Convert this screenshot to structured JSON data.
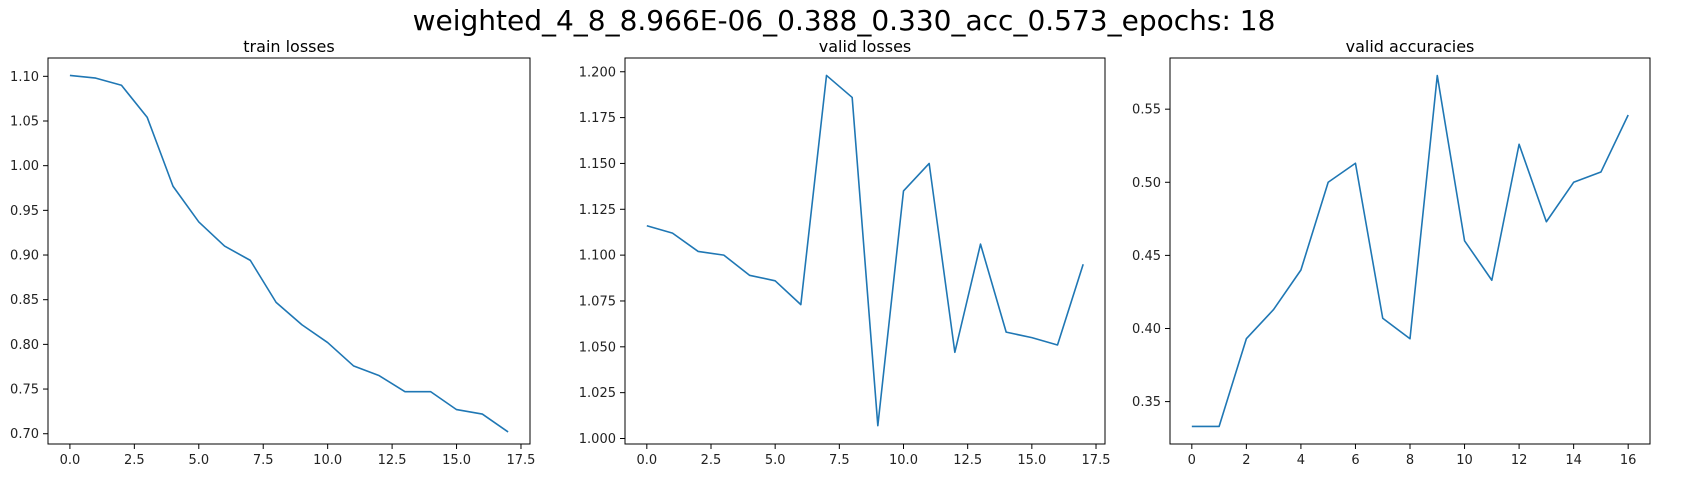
{
  "figure": {
    "suptitle": "weighted_4_8_8.966E-06_0.388_0.330_acc_0.573_epochs: 18"
  },
  "line_color": "#1f77b4",
  "chart_data": [
    {
      "type": "line",
      "title": "train losses",
      "xlabel": "",
      "ylabel": "",
      "x": [
        0,
        1,
        2,
        3,
        4,
        5,
        6,
        7,
        8,
        9,
        10,
        11,
        12,
        13,
        14,
        15,
        16,
        17
      ],
      "series": [
        {
          "values": [
            1.101,
            1.098,
            1.09,
            1.054,
            0.977,
            0.937,
            0.91,
            0.894,
            0.847,
            0.822,
            0.802,
            0.776,
            0.765,
            0.747,
            0.747,
            0.727,
            0.722,
            0.702
          ]
        }
      ],
      "xlim": [
        -0.85,
        17.85
      ],
      "ylim": [
        0.6885,
        1.1205
      ],
      "xticks": [
        0,
        2.5,
        5,
        7.5,
        10,
        12.5,
        15,
        17.5
      ],
      "xtick_labels": [
        "0.0",
        "2.5",
        "5.0",
        "7.5",
        "10.0",
        "12.5",
        "15.0",
        "17.5"
      ],
      "yticks": [
        0.7,
        0.75,
        0.8,
        0.85,
        0.9,
        0.95,
        1.0,
        1.05,
        1.1
      ],
      "ytick_labels": [
        "0.70",
        "0.75",
        "0.80",
        "0.85",
        "0.90",
        "0.95",
        "1.00",
        "1.05",
        "1.10"
      ],
      "grid": false
    },
    {
      "type": "line",
      "title": "valid losses",
      "xlabel": "",
      "ylabel": "",
      "x": [
        0,
        1,
        2,
        3,
        4,
        5,
        6,
        7,
        8,
        9,
        10,
        11,
        12,
        13,
        14,
        15,
        16,
        17
      ],
      "series": [
        {
          "values": [
            1.116,
            1.112,
            1.102,
            1.1,
            1.089,
            1.086,
            1.073,
            1.198,
            1.186,
            1.007,
            1.135,
            1.15,
            1.047,
            1.106,
            1.058,
            1.055,
            1.051,
            1.095
          ]
        }
      ],
      "xlim": [
        -0.85,
        17.85
      ],
      "ylim": [
        0.997,
        1.2075
      ],
      "xticks": [
        0,
        2.5,
        5,
        7.5,
        10,
        12.5,
        15,
        17.5
      ],
      "xtick_labels": [
        "0.0",
        "2.5",
        "5.0",
        "7.5",
        "10.0",
        "12.5",
        "15.0",
        "17.5"
      ],
      "yticks": [
        1.0,
        1.025,
        1.05,
        1.075,
        1.1,
        1.125,
        1.15,
        1.175,
        1.2
      ],
      "ytick_labels": [
        "1.000",
        "1.025",
        "1.050",
        "1.075",
        "1.100",
        "1.125",
        "1.150",
        "1.175",
        "1.200"
      ],
      "grid": false
    },
    {
      "type": "line",
      "title": "valid accuracies",
      "xlabel": "",
      "ylabel": "",
      "x": [
        0,
        1,
        2,
        3,
        4,
        5,
        6,
        7,
        8,
        9,
        10,
        11,
        12,
        13,
        14,
        15,
        16
      ],
      "series": [
        {
          "values": [
            0.333,
            0.333,
            0.393,
            0.413,
            0.44,
            0.5,
            0.513,
            0.407,
            0.393,
            0.573,
            0.46,
            0.433,
            0.526,
            0.473,
            0.5,
            0.507,
            0.546
          ]
        }
      ],
      "xlim": [
        -0.8,
        16.8
      ],
      "ylim": [
        0.321,
        0.585
      ],
      "xticks": [
        0,
        2,
        4,
        6,
        8,
        10,
        12,
        14,
        16
      ],
      "xtick_labels": [
        "0",
        "2",
        "4",
        "6",
        "8",
        "10",
        "12",
        "14",
        "16"
      ],
      "yticks": [
        0.35,
        0.4,
        0.45,
        0.5,
        0.55
      ],
      "ytick_labels": [
        "0.35",
        "0.40",
        "0.45",
        "0.50",
        "0.55"
      ],
      "grid": false
    }
  ]
}
